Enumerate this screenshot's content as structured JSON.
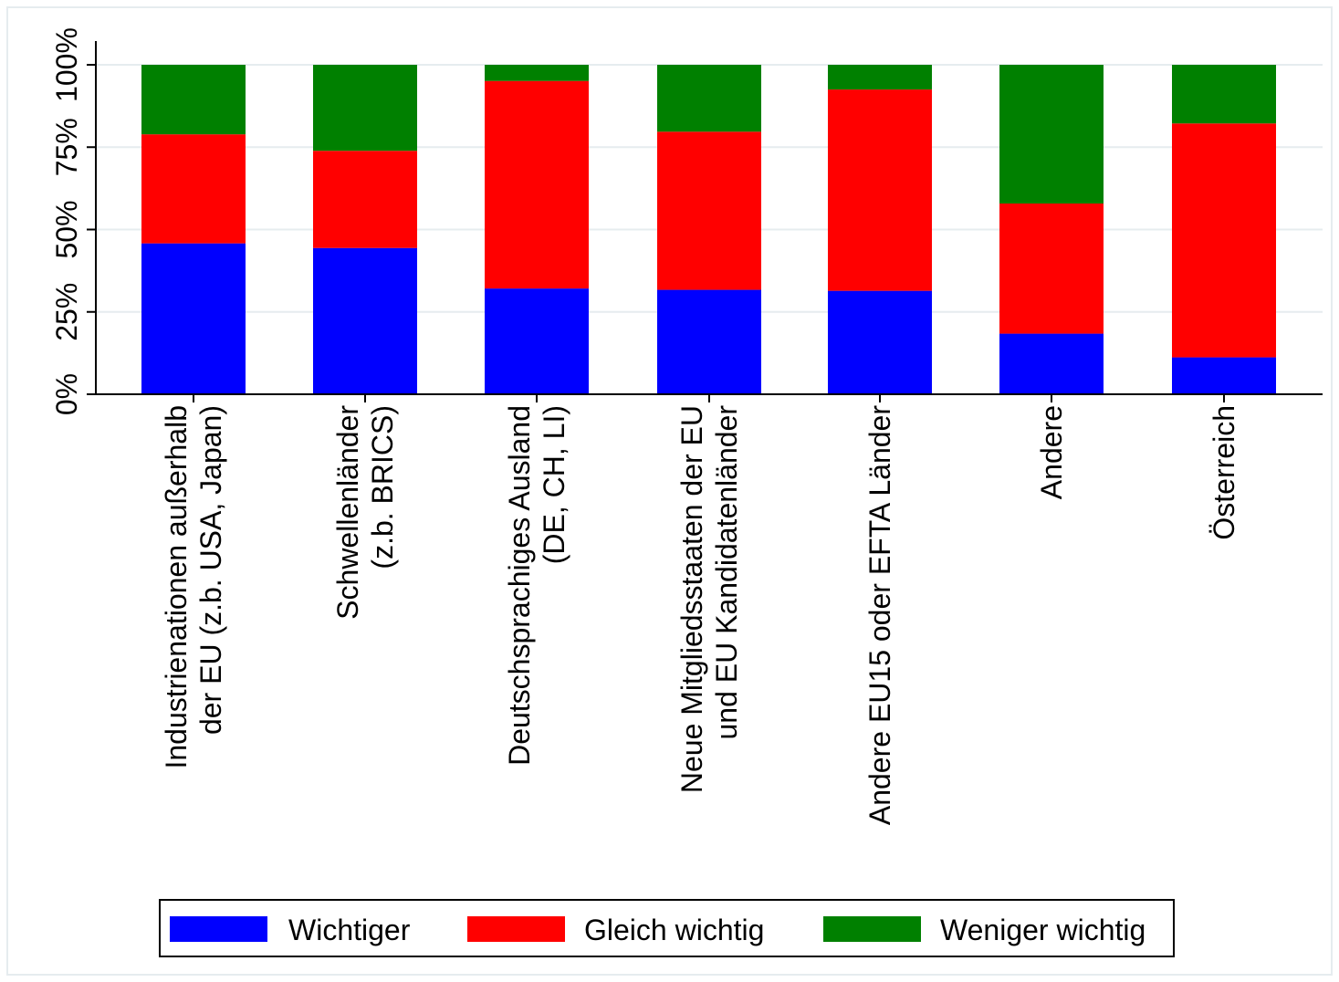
{
  "chart_data": {
    "type": "bar",
    "stacked": true,
    "orientation": "vertical",
    "categories": [
      [
        "Industrienationen außerhalb",
        "der EU (z.b. USA, Japan)"
      ],
      [
        "Schwellenländer",
        "(z.b. BRICS)"
      ],
      [
        "Deutschsprachiges Ausland",
        "(DE, CH, LI)"
      ],
      [
        "Neue Mitgliedsstaaten der EU",
        "und EU Kandidatenländer"
      ],
      [
        "Andere EU15 oder EFTA Länder"
      ],
      [
        "Andere"
      ],
      [
        "Österreich"
      ]
    ],
    "series": [
      {
        "name": "Wichtiger",
        "color": "#0000ff",
        "values": [
          45.8,
          44.4,
          32.1,
          31.7,
          31.4,
          18.4,
          11.2
        ]
      },
      {
        "name": "Gleich wichtig",
        "color": "#ff0000",
        "values": [
          33.1,
          29.5,
          63.0,
          48.0,
          61.1,
          39.5,
          71.0
        ]
      },
      {
        "name": "Weniger wichtig",
        "color": "#008000",
        "values": [
          21.1,
          26.1,
          4.9,
          20.3,
          7.5,
          42.1,
          17.8
        ]
      }
    ],
    "yticks": [
      "0%",
      "25%",
      "50%",
      "75%",
      "100%"
    ],
    "ytick_values": [
      0,
      25,
      50,
      75,
      100
    ],
    "ylim": [
      0,
      100
    ],
    "grid": true,
    "legend_position": "bottom"
  },
  "colors": {
    "grid": "#e6ecef",
    "axis": "#000000"
  }
}
